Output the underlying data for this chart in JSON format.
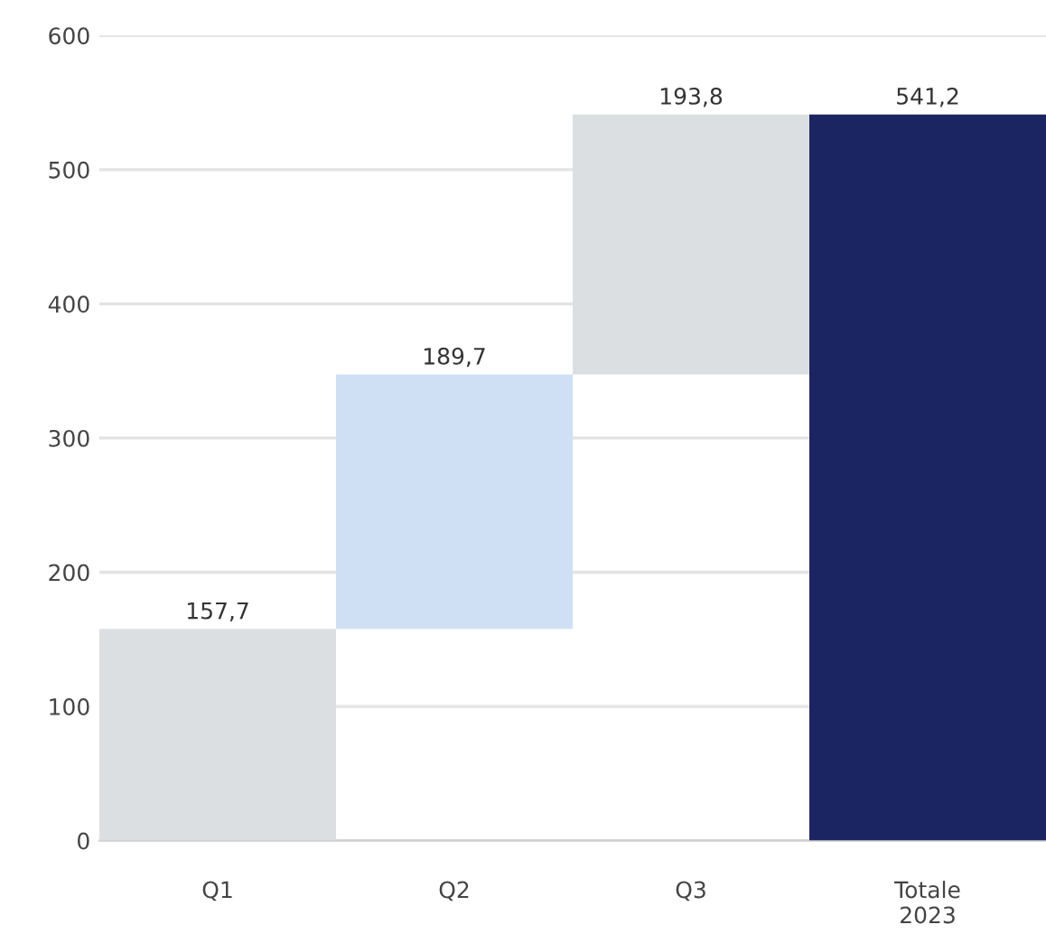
{
  "chart_data": {
    "type": "bar",
    "categories": [
      "Q1",
      "Q2",
      "Q3",
      "Totale\n2023"
    ],
    "values": [
      157.7,
      189.7,
      193.8,
      541.2
    ],
    "base": [
      0,
      157.7,
      347.4,
      0
    ],
    "colors": [
      "#dcdfe2",
      "#cfe0f5",
      "#dcdfe2",
      "#1b2562"
    ],
    "value_labels": [
      "157,7",
      "189,7",
      "193,8",
      "541,2"
    ],
    "ylim": [
      0,
      600
    ],
    "yticks": [
      0,
      100,
      200,
      300,
      400,
      500,
      600
    ],
    "grid": "y"
  }
}
